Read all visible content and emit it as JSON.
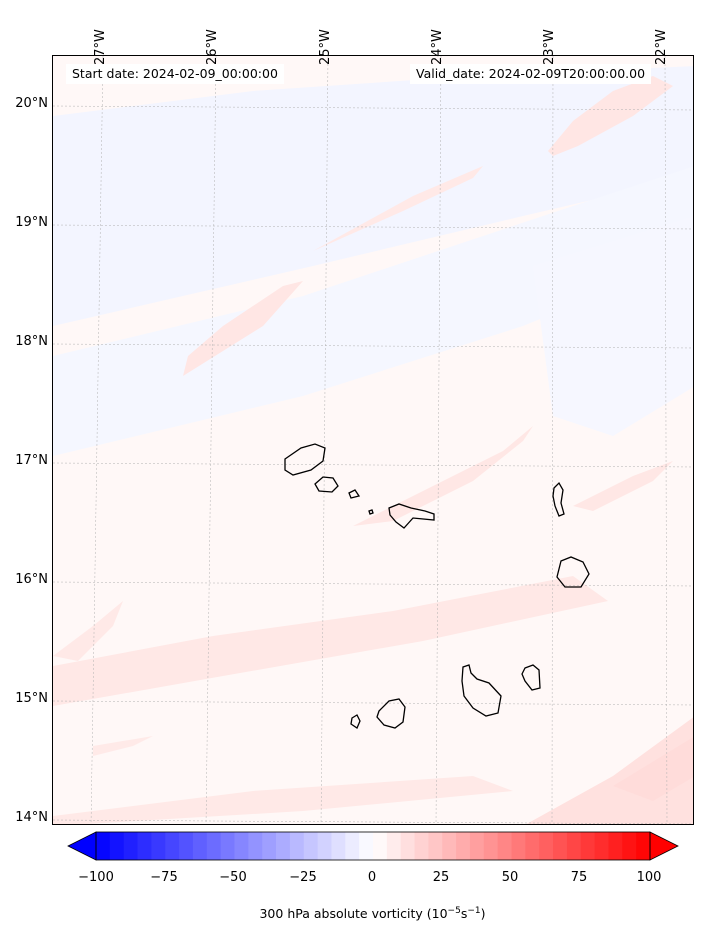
{
  "map": {
    "start_label": "Start date: 2024-02-09_00:00:00",
    "valid_label": "Valid_date: 2024-02-09T20:00:00.00",
    "latitude_labels": [
      "20°N",
      "19°N",
      "18°N",
      "17°N",
      "16°N",
      "15°N",
      "14°N"
    ],
    "longitude_labels": [
      "27°W",
      "26°W",
      "25°W",
      "24°W",
      "23°W",
      "22°W"
    ],
    "islands": [
      "Santo Antão",
      "São Vicente",
      "Santa Luzia",
      "São Nicolau",
      "Sal",
      "Boa Vista",
      "Maio",
      "Santiago",
      "Fogo",
      "Brava"
    ],
    "colors": {
      "coast": "#000000",
      "grid": "#b0b0b0",
      "weak_positive": "#ffe3e1",
      "weak_negative": "#f3f5ff"
    }
  },
  "colorbar": {
    "label_prefix": "300 hPa absolute vorticity (10",
    "label_exponent": "−5",
    "label_unit": "s",
    "label_unit_exponent": "−1",
    "label_suffix": ")",
    "tick_labels": [
      "−100",
      "−75",
      "−50",
      "−25",
      "0",
      "25",
      "50",
      "75",
      "100"
    ],
    "min": -100,
    "max": 100,
    "step": 5,
    "colormap": "bwr",
    "extend": "both"
  }
}
